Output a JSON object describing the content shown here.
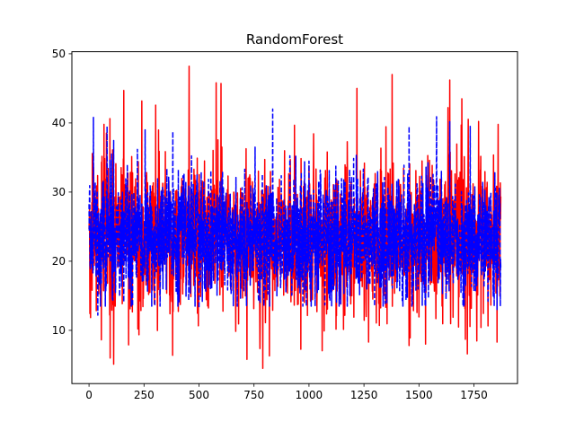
{
  "chart_data": {
    "type": "line",
    "title": "RandomForest",
    "xlabel": "",
    "ylabel": "",
    "xlim": [
      -78,
      1948
    ],
    "ylim": [
      2.3,
      50.3
    ],
    "x_ticks": [
      0,
      250,
      500,
      750,
      1000,
      1250,
      1500,
      1750
    ],
    "y_ticks": [
      10,
      20,
      30,
      40,
      50
    ],
    "grid": false,
    "legend": "none",
    "n_points": 1873,
    "series": [
      {
        "color": "#ff0000",
        "style": "solid",
        "center": 23.5,
        "spread": 5.2,
        "min": 4.5,
        "max": 48.2,
        "peaks": [
          {
            "x": 158,
            "y": 44.7
          },
          {
            "x": 455,
            "y": 48.2
          },
          {
            "x": 578,
            "y": 45.8
          },
          {
            "x": 600,
            "y": 45.7
          },
          {
            "x": 1218,
            "y": 45.0
          },
          {
            "x": 1378,
            "y": 47.0
          },
          {
            "x": 1640,
            "y": 46.2
          },
          {
            "x": 1695,
            "y": 43.5
          },
          {
            "x": 1860,
            "y": 39.8
          },
          {
            "x": 68,
            "y": 39.8
          }
        ],
        "troughs": [
          {
            "x": 112,
            "y": 5.1
          },
          {
            "x": 180,
            "y": 7.9
          },
          {
            "x": 718,
            "y": 5.8
          },
          {
            "x": 790,
            "y": 4.5
          },
          {
            "x": 820,
            "y": 6.3
          },
          {
            "x": 1455,
            "y": 7.8
          },
          {
            "x": 1720,
            "y": 6.6
          },
          {
            "x": 1855,
            "y": 8.3
          },
          {
            "x": 1530,
            "y": 8.0
          }
        ]
      },
      {
        "color": "#0000ff",
        "style": "dashed",
        "center": 23.5,
        "spread": 4.3,
        "min": 12.0,
        "max": 42.0,
        "peaks": [
          {
            "x": 20,
            "y": 40.8
          },
          {
            "x": 835,
            "y": 42.0
          },
          {
            "x": 1580,
            "y": 40.9
          },
          {
            "x": 1640,
            "y": 40.2
          },
          {
            "x": 255,
            "y": 39.0
          }
        ],
        "troughs": [
          {
            "x": 40,
            "y": 12.2
          },
          {
            "x": 1855,
            "y": 13.0
          },
          {
            "x": 500,
            "y": 13.2
          }
        ]
      }
    ]
  }
}
